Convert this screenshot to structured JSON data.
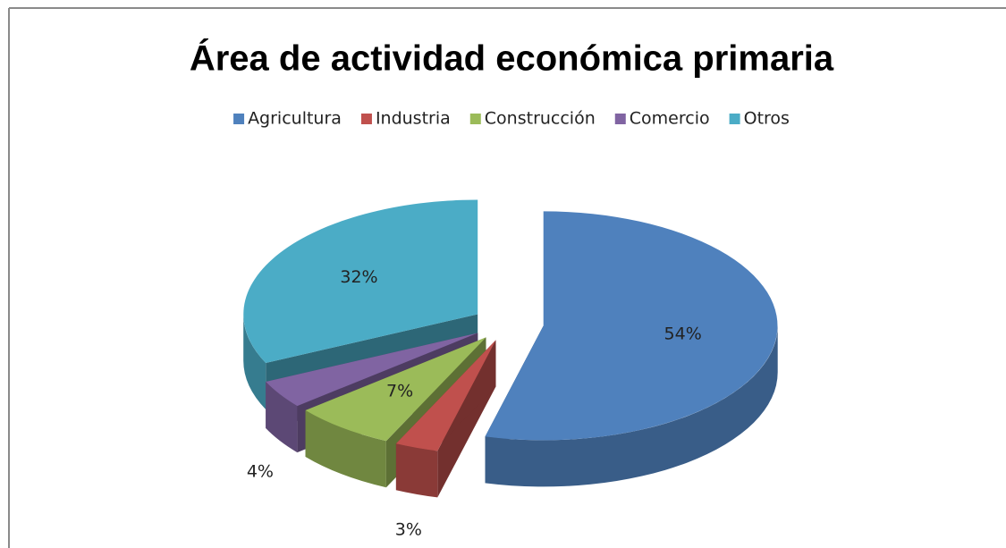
{
  "chart_data": {
    "type": "pie3d",
    "title": "Área de actividad económica primaria",
    "categories": [
      "Agricultura",
      "Industria",
      "Construcción",
      "Comercio",
      "Otros"
    ],
    "values": [
      54,
      3,
      7,
      4,
      32
    ],
    "value_labels": [
      "54%",
      "3%",
      "7%",
      "4%",
      "32%"
    ],
    "colors": [
      "#4f81bd",
      "#c0504d",
      "#9bbb59",
      "#8064a2",
      "#4bacc6"
    ],
    "legend": "top"
  }
}
